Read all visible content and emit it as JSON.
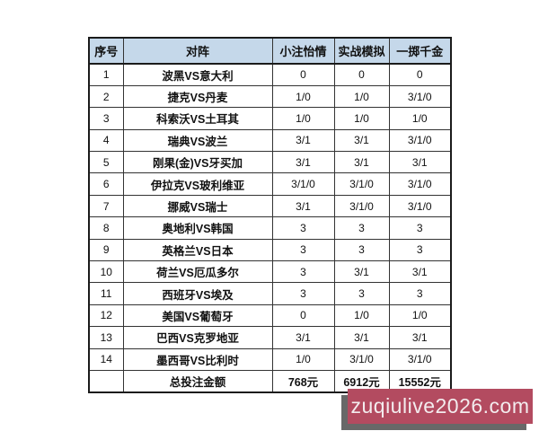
{
  "table": {
    "headers": [
      "序号",
      "对阵",
      "小注怡情",
      "实战模拟",
      "一掷千金"
    ],
    "rows": [
      {
        "no": "1",
        "match": "波黑VS意大利",
        "c1": "0",
        "c2": "0",
        "c3": "0"
      },
      {
        "no": "2",
        "match": "捷克VS丹麦",
        "c1": "1/0",
        "c2": "1/0",
        "c3": "3/1/0"
      },
      {
        "no": "3",
        "match": "科索沃VS土耳其",
        "c1": "1/0",
        "c2": "1/0",
        "c3": "1/0"
      },
      {
        "no": "4",
        "match": "瑞典VS波兰",
        "c1": "3/1",
        "c2": "3/1",
        "c3": "3/1/0"
      },
      {
        "no": "5",
        "match": "刚果(金)VS牙买加",
        "c1": "3/1",
        "c2": "3/1",
        "c3": "3/1"
      },
      {
        "no": "6",
        "match": "伊拉克VS玻利维亚",
        "c1": "3/1/0",
        "c2": "3/1/0",
        "c3": "3/1/0"
      },
      {
        "no": "7",
        "match": "挪威VS瑞士",
        "c1": "3/1",
        "c2": "3/1/0",
        "c3": "3/1/0"
      },
      {
        "no": "8",
        "match": "奥地利VS韩国",
        "c1": "3",
        "c2": "3",
        "c3": "3"
      },
      {
        "no": "9",
        "match": "英格兰VS日本",
        "c1": "3",
        "c2": "3",
        "c3": "3"
      },
      {
        "no": "10",
        "match": "荷兰VS厄瓜多尔",
        "c1": "3",
        "c2": "3/1",
        "c3": "3/1"
      },
      {
        "no": "11",
        "match": "西班牙VS埃及",
        "c1": "3",
        "c2": "3",
        "c3": "3"
      },
      {
        "no": "12",
        "match": "美国VS葡萄牙",
        "c1": "0",
        "c2": "1/0",
        "c3": "1/0"
      },
      {
        "no": "13",
        "match": "巴西VS克罗地亚",
        "c1": "3/1",
        "c2": "3/1",
        "c3": "3/1"
      },
      {
        "no": "14",
        "match": "墨西哥VS比利时",
        "c1": "1/0",
        "c2": "3/1/0",
        "c3": "3/1/0"
      }
    ],
    "footer": {
      "no": "",
      "label": "总投注金额",
      "c1": "768元",
      "c2": "6912元",
      "c3": "15552元"
    }
  },
  "watermark": {
    "text": "zuqiulive2026.com"
  },
  "colors": {
    "header_bg": "#c5d8ea",
    "grid_border": "#333333",
    "outer_border": "#1b1b1b",
    "watermark_bg": "#b34b60",
    "watermark_shadow": "#686868",
    "watermark_text": "#f3ecee"
  },
  "chart_data": {
    "type": "table",
    "title": "",
    "columns": [
      "序号",
      "对阵",
      "小注怡情",
      "实战模拟",
      "一掷千金"
    ],
    "rows": [
      [
        "1",
        "波黑VS意大利",
        "0",
        "0",
        "0"
      ],
      [
        "2",
        "捷克VS丹麦",
        "1/0",
        "1/0",
        "3/1/0"
      ],
      [
        "3",
        "科索沃VS土耳其",
        "1/0",
        "1/0",
        "1/0"
      ],
      [
        "4",
        "瑞典VS波兰",
        "3/1",
        "3/1",
        "3/1/0"
      ],
      [
        "5",
        "刚果(金)VS牙买加",
        "3/1",
        "3/1",
        "3/1"
      ],
      [
        "6",
        "伊拉克VS玻利维亚",
        "3/1/0",
        "3/1/0",
        "3/1/0"
      ],
      [
        "7",
        "挪威VS瑞士",
        "3/1",
        "3/1/0",
        "3/1/0"
      ],
      [
        "8",
        "奥地利VS韩国",
        "3",
        "3",
        "3"
      ],
      [
        "9",
        "英格兰VS日本",
        "3",
        "3",
        "3"
      ],
      [
        "10",
        "荷兰VS厄瓜多尔",
        "3",
        "3/1",
        "3/1"
      ],
      [
        "11",
        "西班牙VS埃及",
        "3",
        "3",
        "3"
      ],
      [
        "12",
        "美国VS葡萄牙",
        "0",
        "1/0",
        "1/0"
      ],
      [
        "13",
        "巴西VS克罗地亚",
        "3/1",
        "3/1",
        "3/1"
      ],
      [
        "14",
        "墨西哥VS比利时",
        "1/0",
        "3/1/0",
        "3/1/0"
      ],
      [
        "",
        "总投注金额",
        "768元",
        "6912元",
        "15552元"
      ]
    ]
  }
}
